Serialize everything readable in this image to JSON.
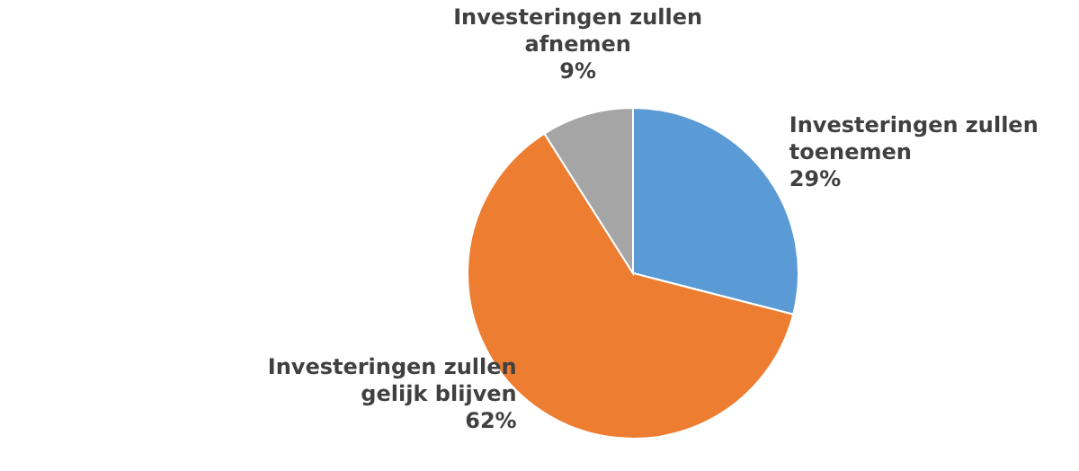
{
  "chart_data": {
    "type": "pie",
    "categories": [
      "Investeringen zullen toenemen",
      "Investeringen zullen gelijk blijven",
      "Investeringen zullen afnemen"
    ],
    "values": [
      29,
      62,
      9
    ],
    "colors": [
      "#5b9bd5",
      "#ed7d31",
      "#a5a5a5"
    ],
    "value_labels": [
      "29%",
      "62%",
      "9%"
    ]
  }
}
